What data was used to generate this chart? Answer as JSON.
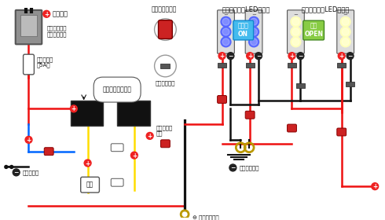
{
  "bg_color": "#ffffff",
  "led_blue_title": "３連フラットLED（青）",
  "led_white_title": "３連フラットLED（白）",
  "illumi_label": "イルミ\nON",
  "door_label": "ドア\nOPEN",
  "illumi_color": "#44bbee",
  "door_color": "#88cc44",
  "relay_label": "コンパクトリレー",
  "fuse_label": "管ヒューズ\n（5A）",
  "power_label": "常時電源",
  "free_fuse_label": "フリータイプ\nヒューズ電源",
  "connector_label": "配線コネクター",
  "crimp_label": "圧着接続端子",
  "insulate_label": "絶縁",
  "illumi_wire_label": "純正イルミ\n配線",
  "door_signal_label": "ドア信号線",
  "body_earth_label1": "ボディアース",
  "body_earth_label2": "ボディアース",
  "plus_color": "#ee2222",
  "minus_color": "#222222",
  "red": "#ee1111",
  "black": "#111111",
  "yellow": "#ffdd00",
  "blue_w": "#0066ff",
  "white": "#ffffff",
  "gray": "#999999",
  "dark_gray": "#555555",
  "led_blue": "#5566ff",
  "led_white": "#ffffbb",
  "resistor_color": "#555555",
  "connector_red": "#cc2222",
  "relay_fill": "#111111"
}
